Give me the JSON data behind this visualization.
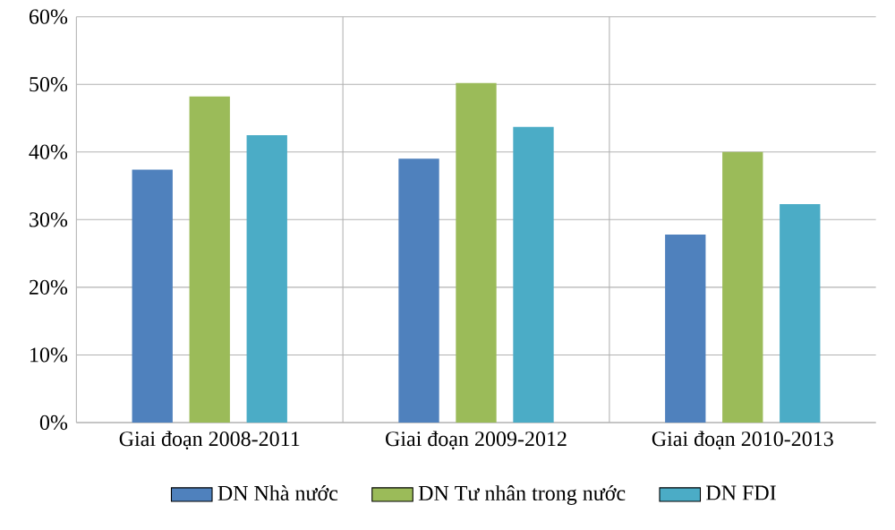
{
  "chart_data": {
    "type": "bar",
    "categories": [
      "Giai đoạn 2008-2011",
      "Giai đoạn 2009-2012",
      "Giai đoạn 2010-2013"
    ],
    "series": [
      {
        "name": "DN Nhà nước",
        "color": "#4f81bd",
        "values": [
          37.4,
          39,
          27.8
        ]
      },
      {
        "name": "DN  Tư nhân trong nước",
        "color": "#9bbb59",
        "values": [
          48.2,
          50.2,
          40
        ]
      },
      {
        "name": "DN FDI",
        "color": "#4bacc6",
        "values": [
          42.5,
          43.7,
          32.3
        ]
      }
    ],
    "ylim": [
      0,
      60
    ],
    "yticks": [
      {
        "value": 0,
        "label": "0%"
      },
      {
        "value": 10,
        "label": "10%"
      },
      {
        "value": 20,
        "label": "20%"
      },
      {
        "value": 30,
        "label": "30%"
      },
      {
        "value": 40,
        "label": "40%"
      },
      {
        "value": 50,
        "label": "50%"
      },
      {
        "value": 60,
        "label": "60%"
      }
    ],
    "grid": "y",
    "legend": "bottom"
  }
}
